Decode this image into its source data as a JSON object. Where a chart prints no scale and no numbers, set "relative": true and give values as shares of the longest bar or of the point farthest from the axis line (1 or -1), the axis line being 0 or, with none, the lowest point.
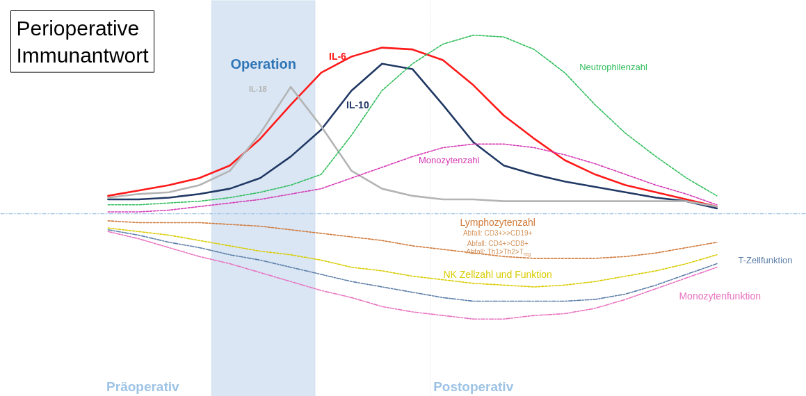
{
  "chart_data": {
    "type": "line",
    "title": "Perioperative Immunantwort",
    "relative": true,
    "grid": false,
    "categories": [
      null,
      null,
      null,
      null,
      null,
      null,
      null,
      null,
      null,
      null,
      null,
      null,
      null,
      null,
      null,
      null,
      null,
      null,
      null,
      null,
      null
    ],
    "series": [
      {
        "name": "IL-6",
        "color": "#ff1a1a",
        "line_style": "solid",
        "values": [
          0.1,
          0.13,
          0.16,
          0.2,
          0.27,
          0.42,
          0.61,
          0.79,
          0.88,
          0.93,
          0.92,
          0.86,
          0.72,
          0.55,
          0.42,
          0.3,
          0.22,
          0.16,
          0.12,
          0.08,
          0.04
        ]
      },
      {
        "name": "IL-10",
        "color": "#203864",
        "line_style": "solid",
        "values": [
          0.08,
          0.08,
          0.09,
          0.11,
          0.14,
          0.2,
          0.32,
          0.47,
          0.69,
          0.84,
          0.81,
          0.61,
          0.4,
          0.27,
          0.22,
          0.18,
          0.15,
          0.12,
          0.09,
          0.07,
          0.03
        ]
      },
      {
        "name": "IL-18",
        "color": "#b4b4b4",
        "line_style": "solid",
        "values": [
          0.09,
          0.11,
          0.12,
          0.16,
          0.24,
          0.45,
          0.71,
          0.49,
          0.24,
          0.14,
          0.1,
          0.08,
          0.08,
          0.07,
          0.07,
          0.07,
          0.07,
          0.07,
          0.07,
          0.07,
          0.04
        ]
      },
      {
        "name": "Neutrophilenzahl",
        "color": "#2ebd5a",
        "line_style": "dashed",
        "values": [
          0.05,
          0.05,
          0.06,
          0.07,
          0.09,
          0.12,
          0.16,
          0.22,
          0.44,
          0.69,
          0.84,
          0.95,
          1.0,
          0.99,
          0.92,
          0.79,
          0.61,
          0.45,
          0.32,
          0.2,
          0.1
        ]
      },
      {
        "name": "Monozytenzahl",
        "color": "#d63ab6",
        "line_style": "dashed",
        "values": [
          0.01,
          0.01,
          0.02,
          0.04,
          0.06,
          0.08,
          0.11,
          0.14,
          0.2,
          0.26,
          0.32,
          0.37,
          0.39,
          0.39,
          0.37,
          0.33,
          0.28,
          0.22,
          0.16,
          0.11,
          0.05
        ]
      },
      {
        "name": "Lymphozytenzahl",
        "color": "#d07a3a",
        "line_style": "dashed",
        "values": [
          -0.04,
          -0.05,
          -0.05,
          -0.05,
          -0.06,
          -0.07,
          -0.09,
          -0.11,
          -0.13,
          -0.15,
          -0.18,
          -0.2,
          -0.22,
          -0.24,
          -0.25,
          -0.25,
          -0.25,
          -0.24,
          -0.22,
          -0.19,
          -0.16
        ]
      },
      {
        "name": "NK Zellzahl und Funktion",
        "color": "#d9cc00",
        "line_style": "dashed",
        "values": [
          -0.08,
          -0.1,
          -0.12,
          -0.15,
          -0.18,
          -0.21,
          -0.23,
          -0.26,
          -0.3,
          -0.32,
          -0.35,
          -0.37,
          -0.39,
          -0.4,
          -0.41,
          -0.4,
          -0.38,
          -0.35,
          -0.32,
          -0.28,
          -0.23
        ]
      },
      {
        "name": "T-Zellfunktion",
        "color": "#5b7ea8",
        "line_style": "dashdot",
        "values": [
          -0.09,
          -0.12,
          -0.16,
          -0.19,
          -0.23,
          -0.26,
          -0.3,
          -0.34,
          -0.38,
          -0.41,
          -0.44,
          -0.47,
          -0.49,
          -0.49,
          -0.49,
          -0.49,
          -0.48,
          -0.45,
          -0.4,
          -0.34,
          -0.28
        ]
      },
      {
        "name": "Monozytenfunktion",
        "color": "#e872c0",
        "line_style": "dashdot",
        "values": [
          -0.1,
          -0.14,
          -0.19,
          -0.24,
          -0.28,
          -0.33,
          -0.38,
          -0.43,
          -0.47,
          -0.52,
          -0.55,
          -0.57,
          -0.59,
          -0.59,
          -0.57,
          -0.56,
          -0.53,
          -0.48,
          -0.42,
          -0.36,
          -0.3
        ]
      }
    ],
    "ref_lines": [
      {
        "axis": "y",
        "value": 0,
        "color": "#9dc3e6",
        "line_style": "dashdot"
      }
    ],
    "annotations": [
      "Operation",
      "Abfall: CD3+>>CD19+",
      "Abfall: CD4+>CD8+",
      "Abfall: Th1>Th2>T$_{reg}$",
      "Präoperativ",
      "Postoperativ"
    ]
  }
}
